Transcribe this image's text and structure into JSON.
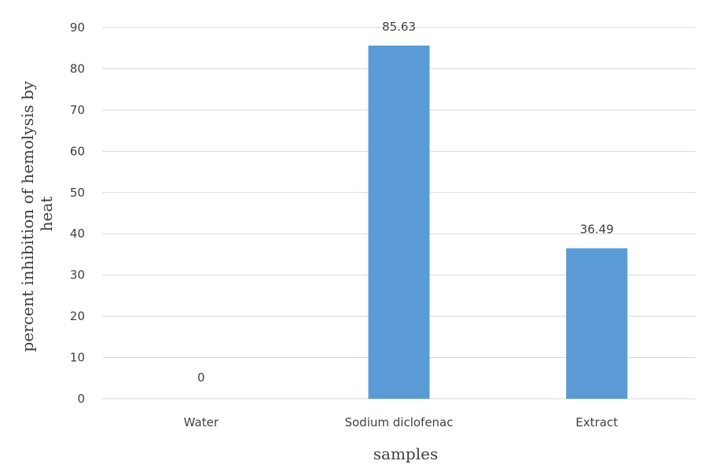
{
  "chart_data": {
    "type": "bar",
    "categories": [
      "Water",
      "Sodium diclofenac",
      "Extract"
    ],
    "values": [
      0,
      85.63,
      36.49
    ],
    "data_labels": [
      "0",
      "85.63",
      "36.49"
    ],
    "xlabel": "samples",
    "ylabel": [
      "percent inhibition of hemolysis by",
      "heat"
    ],
    "ylim": [
      0,
      90
    ],
    "yticks": [
      0,
      10,
      20,
      30,
      40,
      50,
      60,
      70,
      80,
      90
    ],
    "grid": true,
    "bar_color": "#5b9bd5",
    "legend": "none"
  }
}
